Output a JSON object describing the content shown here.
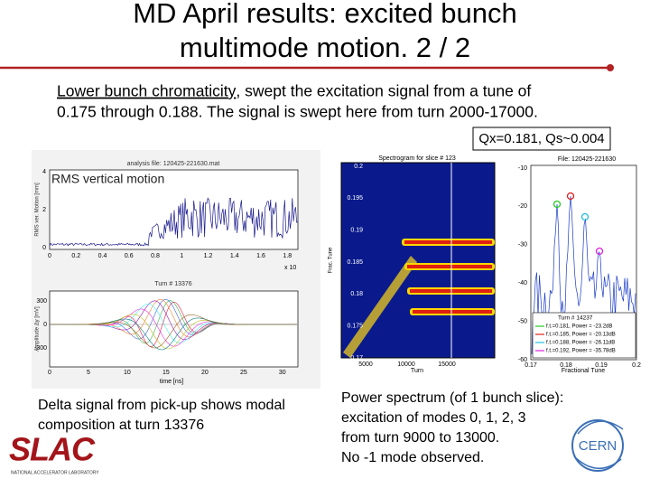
{
  "header": {
    "title_lines": [
      "MD April results: excited bunch",
      "multimode motion. 2 / 2"
    ]
  },
  "intro": {
    "underlined": "Lower bunch chromaticity",
    "line1_rest": ", swept the excitation signal from a tune of",
    "line2": "0.175 through 0.188. The signal is swept here from turn 2000-17000."
  },
  "tunes_box": "Qx=0.181, Qs~0.004",
  "left_figure": {
    "top_title": "analysis file: 120425-221630.mat",
    "label": "RMS vertical motion",
    "top_ylabel": "RMS ver. Motion [mm]",
    "top_yticks": [
      "4",
      "2",
      "0"
    ],
    "top_xticks": [
      "0",
      "0.2",
      "0.4",
      "0.6",
      "0.8",
      "1",
      "1.2",
      "1.4",
      "1.6",
      "1.8"
    ],
    "top_xmult": "x 10",
    "bottom_title": "Turn # 13376",
    "bottom_ylabel": "Amplitude Δy [mV]",
    "bottom_yticks": [
      "300",
      "0",
      "-300"
    ],
    "bottom_xticks": [
      "0",
      "5",
      "10",
      "15",
      "20",
      "25",
      "30"
    ],
    "bottom_xlabel": "time [ns]",
    "caption_lines": [
      "Delta signal from pick-up shows modal",
      "composition at turn 13376"
    ]
  },
  "middle_figure": {
    "title": "Spectrogram for slice # 123",
    "ylabel": "Frac. Tune",
    "yticks": [
      "0.2",
      "0.195",
      "0.19",
      "0.185",
      "0.18",
      "0.175",
      "0.17"
    ],
    "xticks": [
      "5000",
      "10000",
      "15000"
    ],
    "xlabel": "Turn"
  },
  "right_figure": {
    "title": "File: 120425-221630",
    "yticks": [
      "-10",
      "-20",
      "-30",
      "-40",
      "-50",
      "-60"
    ],
    "xticks": [
      "0.17",
      "0.18",
      "0.19",
      "0.2"
    ],
    "xlabel": "Fractional Tune",
    "legend_title": "Turn # 14237",
    "legend": [
      "f.t.=0.181, Power = -23.2dB",
      "f.t.=0.185, Power = -20.13dB",
      "f.t.=0.188, Power = -26.11dB",
      "f.t.=0.192, Power = -35.78dB"
    ],
    "caption_lines": [
      "Power spectrum (of 1 bunch slice):",
      "excitation of modes 0, 1, 2, 3",
      "from turn 9000 to 13000.",
      "No -1 mode observed."
    ]
  },
  "logos": {
    "slac": "SLAC",
    "slac_sub": "NATIONAL ACCELERATOR LABORATORY",
    "cern": "CERN"
  }
}
